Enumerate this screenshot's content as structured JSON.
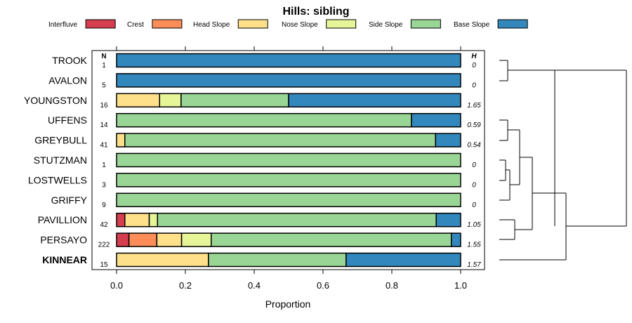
{
  "chart_data": {
    "type": "bar",
    "orientation": "horizontal-stacked",
    "title": "Hills: sibling",
    "xlabel": "Proportion",
    "ylabel": "",
    "xlim": [
      0,
      1
    ],
    "xticks": [
      "0.0",
      "0.2",
      "0.4",
      "0.6",
      "0.8",
      "1.0"
    ],
    "n_header": "N",
    "h_header": "H",
    "legend_position": "top",
    "series": [
      {
        "name": "Interfluve",
        "color": "#D53E4F"
      },
      {
        "name": "Crest",
        "color": "#FC8D59"
      },
      {
        "name": "Head Slope",
        "color": "#FEE08B"
      },
      {
        "name": "Nose Slope",
        "color": "#E6F598"
      },
      {
        "name": "Side Slope",
        "color": "#99D594"
      },
      {
        "name": "Base Slope",
        "color": "#3288BD"
      }
    ],
    "categories": [
      "TROOK",
      "AVALON",
      "YOUNGSTON",
      "UFFENS",
      "GREYBULL",
      "STUTZMAN",
      "LOSTWELLS",
      "GRIFFY",
      "PAVILLION",
      "PERSAYO",
      "KINNEAR"
    ],
    "highlight_category": "KINNEAR",
    "rows": [
      {
        "name": "TROOK",
        "n": "1",
        "h": "0",
        "values": [
          0,
          0,
          0,
          0,
          0,
          1.0
        ]
      },
      {
        "name": "AVALON",
        "n": "5",
        "h": "0",
        "values": [
          0,
          0,
          0,
          0,
          0,
          1.0
        ]
      },
      {
        "name": "YOUNGSTON",
        "n": "16",
        "h": "1.65",
        "values": [
          0,
          0,
          0.125,
          0.0625,
          0.3125,
          0.5
        ]
      },
      {
        "name": "UFFENS",
        "n": "14",
        "h": "0.59",
        "values": [
          0,
          0,
          0,
          0,
          0.857,
          0.143
        ]
      },
      {
        "name": "GREYBULL",
        "n": "41",
        "h": "0.54",
        "values": [
          0,
          0,
          0.024,
          0,
          0.903,
          0.073
        ]
      },
      {
        "name": "STUTZMAN",
        "n": "1",
        "h": "0",
        "values": [
          0,
          0,
          0,
          0,
          1.0,
          0
        ]
      },
      {
        "name": "LOSTWELLS",
        "n": "3",
        "h": "0",
        "values": [
          0,
          0,
          0,
          0,
          1.0,
          0
        ]
      },
      {
        "name": "GRIFFY",
        "n": "9",
        "h": "0",
        "values": [
          0,
          0,
          0,
          0,
          1.0,
          0
        ]
      },
      {
        "name": "PAVILLION",
        "n": "42",
        "h": "1.05",
        "values": [
          0.024,
          0,
          0.071,
          0.024,
          0.81,
          0.071
        ]
      },
      {
        "name": "PERSAYO",
        "n": "222",
        "h": "1.55",
        "values": [
          0.036,
          0.081,
          0.072,
          0.086,
          0.698,
          0.027
        ]
      },
      {
        "name": "KINNEAR",
        "n": "15",
        "h": "1.57",
        "values": [
          0,
          0,
          0.267,
          0,
          0.4,
          0.333
        ]
      }
    ]
  }
}
